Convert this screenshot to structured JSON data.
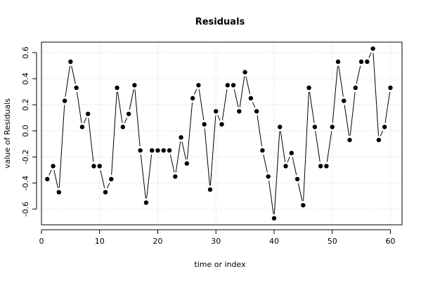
{
  "chart_data": {
    "type": "line",
    "title": "Residuals",
    "xlabel": "time or index",
    "ylabel": "value of Residuals",
    "xlim": [
      0,
      62
    ],
    "ylim": [
      -0.72,
      0.68
    ],
    "xticks": [
      0,
      10,
      20,
      30,
      40,
      50,
      60
    ],
    "yticks": [
      -0.6,
      -0.4,
      -0.2,
      0.0,
      0.2,
      0.4,
      0.6
    ],
    "ytick_labels": [
      "-0.6",
      "-0.4",
      "-0.2",
      "0.0",
      "0.2",
      "0.4",
      "0.6"
    ],
    "grid": true,
    "x": [
      1,
      2,
      3,
      4,
      5,
      6,
      7,
      8,
      9,
      10,
      11,
      12,
      13,
      14,
      15,
      16,
      17,
      18,
      19,
      20,
      21,
      22,
      23,
      24,
      25,
      26,
      27,
      28,
      29,
      30,
      31,
      32,
      33,
      34,
      35,
      36,
      37,
      38,
      39,
      40,
      41,
      42,
      43,
      44,
      45,
      46,
      47,
      48,
      49,
      50,
      51,
      52,
      53,
      54,
      55,
      56,
      57,
      58,
      59,
      60
    ],
    "values": [
      -0.37,
      -0.27,
      -0.47,
      0.23,
      0.53,
      0.33,
      0.03,
      0.13,
      -0.27,
      -0.27,
      -0.47,
      -0.37,
      0.33,
      0.03,
      0.13,
      0.35,
      -0.15,
      -0.55,
      -0.15,
      -0.15,
      -0.15,
      -0.15,
      -0.35,
      -0.05,
      -0.25,
      0.25,
      0.35,
      0.05,
      -0.45,
      0.15,
      0.05,
      0.35,
      0.35,
      0.15,
      0.45,
      0.25,
      0.15,
      -0.15,
      -0.35,
      -0.67,
      0.03,
      -0.27,
      -0.17,
      -0.37,
      -0.57,
      0.33,
      0.03,
      -0.27,
      -0.27,
      0.03,
      0.53,
      0.23,
      -0.07,
      0.33,
      0.53,
      0.53,
      0.63,
      -0.07,
      0.03,
      0.33
    ]
  }
}
